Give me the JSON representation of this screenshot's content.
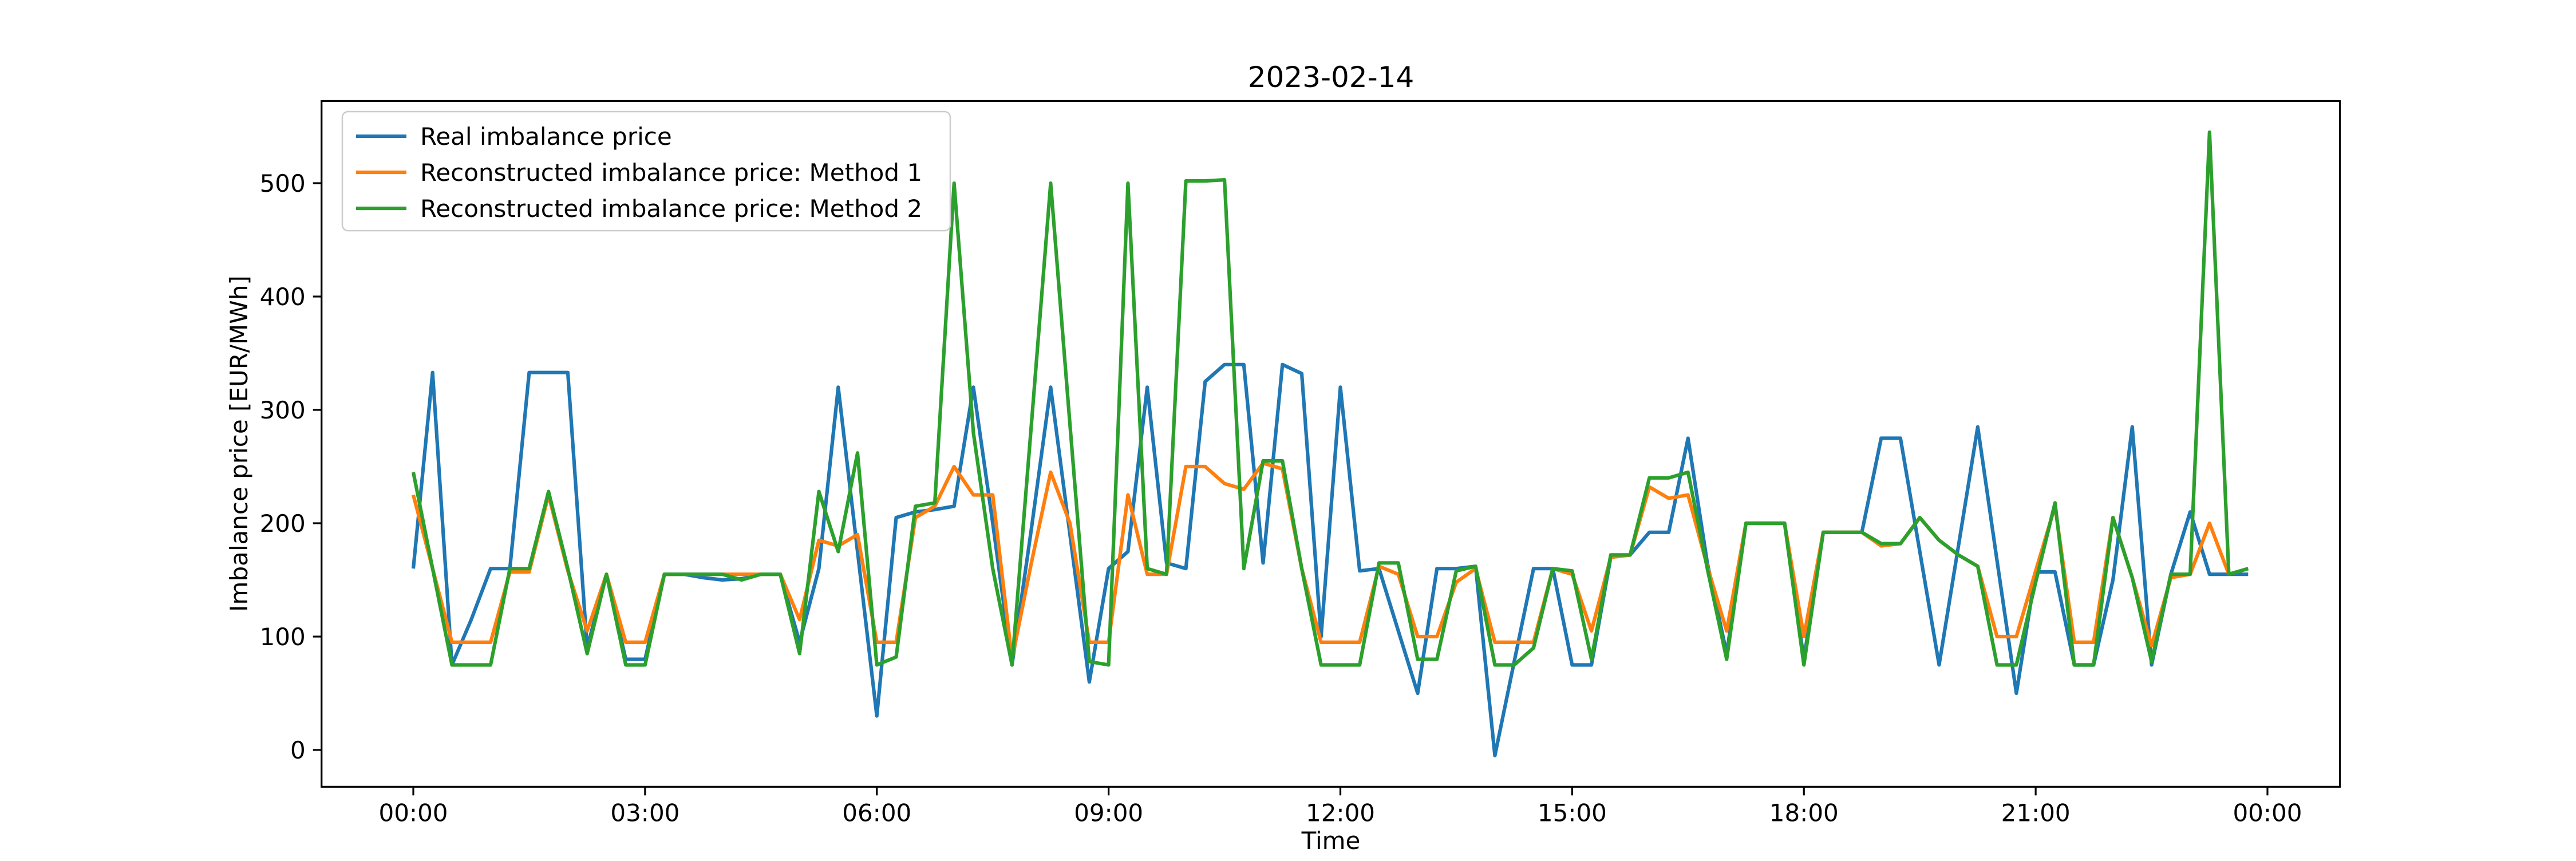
{
  "chart_data": {
    "type": "line",
    "title": "2023-02-14",
    "xlabel": "Time",
    "ylabel": "Imbalance price [EUR/MWh]",
    "grid": false,
    "legend_position": "upper left",
    "ylim": [
      -32.5,
      572.5
    ],
    "xlim_hours": [
      -1.1875,
      24.9375
    ],
    "yticks": [
      0,
      100,
      200,
      300,
      400,
      500
    ],
    "xticks": {
      "hours": [
        0,
        3,
        6,
        9,
        12,
        15,
        18,
        21,
        24
      ],
      "labels": [
        "00:00",
        "03:00",
        "06:00",
        "09:00",
        "12:00",
        "15:00",
        "18:00",
        "21:00",
        "00:00"
      ]
    },
    "x_times": [
      "00:00",
      "00:15",
      "00:30",
      "00:45",
      "01:00",
      "01:15",
      "01:30",
      "01:45",
      "02:00",
      "02:15",
      "02:30",
      "02:45",
      "03:00",
      "03:15",
      "03:30",
      "03:45",
      "04:00",
      "04:15",
      "04:30",
      "04:45",
      "05:00",
      "05:15",
      "05:30",
      "05:45",
      "06:00",
      "06:15",
      "06:30",
      "06:45",
      "07:00",
      "07:15",
      "07:30",
      "07:45",
      "08:00",
      "08:15",
      "08:30",
      "08:45",
      "09:00",
      "09:15",
      "09:30",
      "09:45",
      "10:00",
      "10:15",
      "10:30",
      "10:45",
      "11:00",
      "11:15",
      "11:30",
      "11:45",
      "12:00",
      "12:15",
      "12:30",
      "12:45",
      "13:00",
      "13:15",
      "13:30",
      "13:45",
      "14:00",
      "14:15",
      "14:30",
      "14:45",
      "15:00",
      "15:15",
      "15:30",
      "15:45",
      "16:00",
      "16:15",
      "16:30",
      "16:45",
      "17:00",
      "17:15",
      "17:30",
      "17:45",
      "18:00",
      "18:15",
      "18:30",
      "18:45",
      "19:00",
      "19:15",
      "19:30",
      "19:45",
      "20:00",
      "20:15",
      "20:30",
      "20:45",
      "21:00",
      "21:15",
      "21:30",
      "21:45",
      "22:00",
      "22:15",
      "22:30",
      "22:45",
      "23:00",
      "23:15",
      "23:30",
      "23:45"
    ],
    "series": [
      {
        "name": "Real imbalance price",
        "color": "#1f77b4",
        "values": [
          160,
          333,
          75,
          115,
          160,
          160,
          333,
          333,
          333,
          90,
          155,
          80,
          80,
          155,
          155,
          152,
          150,
          151,
          155,
          155,
          95,
          160,
          320,
          175,
          30,
          205,
          210,
          212,
          215,
          320,
          200,
          75,
          195,
          320,
          190,
          60,
          160,
          175,
          320,
          165,
          160,
          325,
          340,
          340,
          165,
          340,
          332,
          100,
          320,
          158,
          160,
          105,
          50,
          160,
          160,
          162,
          -5,
          78,
          160,
          160,
          75,
          75,
          170,
          172,
          192,
          192,
          275,
          165,
          85,
          200,
          200,
          200,
          80,
          192,
          192,
          192,
          275,
          275,
          175,
          75,
          180,
          285,
          167,
          50,
          157,
          157,
          75,
          75,
          150,
          285,
          75,
          155,
          210,
          155,
          155,
          155
        ]
      },
      {
        "name": "Reconstructed imbalance price: Method 1",
        "color": "#ff7f0e",
        "values": [
          225,
          160,
          95,
          95,
          95,
          157,
          157,
          225,
          158,
          105,
          155,
          95,
          95,
          155,
          155,
          155,
          155,
          155,
          155,
          155,
          115,
          185,
          180,
          190,
          95,
          95,
          205,
          215,
          250,
          225,
          225,
          80,
          165,
          245,
          200,
          95,
          95,
          225,
          155,
          155,
          250,
          250,
          235,
          230,
          253,
          248,
          160,
          95,
          95,
          95,
          162,
          155,
          100,
          100,
          148,
          160,
          95,
          95,
          95,
          160,
          155,
          105,
          170,
          172,
          232,
          222,
          225,
          162,
          105,
          200,
          200,
          200,
          100,
          192,
          192,
          192,
          180,
          182,
          205,
          185,
          172,
          162,
          100,
          100,
          158,
          215,
          95,
          95,
          205,
          152,
          92,
          152,
          155,
          200,
          155,
          160
        ]
      },
      {
        "name": "Reconstructed imbalance price: Method 2",
        "color": "#2ca02c",
        "values": [
          245,
          160,
          75,
          75,
          75,
          160,
          160,
          228,
          160,
          85,
          155,
          75,
          75,
          155,
          155,
          155,
          155,
          150,
          155,
          155,
          85,
          228,
          175,
          262,
          75,
          82,
          215,
          218,
          500,
          280,
          160,
          75,
          287,
          500,
          287,
          78,
          75,
          500,
          160,
          155,
          502,
          502,
          503,
          160,
          255,
          255,
          160,
          75,
          75,
          75,
          165,
          165,
          80,
          80,
          158,
          162,
          75,
          75,
          90,
          160,
          158,
          80,
          172,
          172,
          240,
          240,
          245,
          160,
          80,
          200,
          200,
          200,
          75,
          192,
          192,
          192,
          182,
          182,
          205,
          185,
          172,
          162,
          75,
          75,
          148,
          218,
          75,
          75,
          205,
          152,
          78,
          155,
          155,
          545,
          155,
          160
        ]
      }
    ]
  }
}
